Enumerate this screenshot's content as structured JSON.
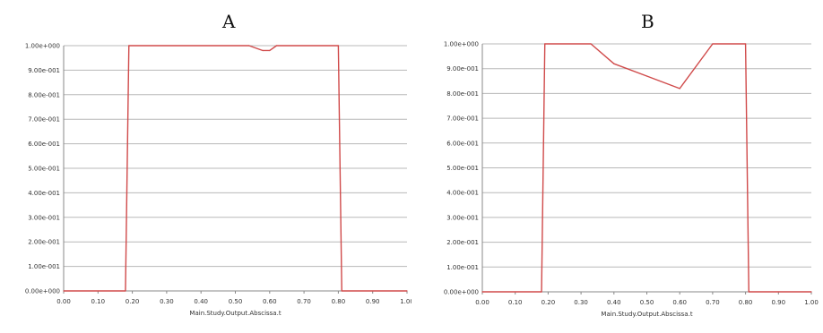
{
  "chart_data": [
    {
      "type": "line",
      "panel_label": "A",
      "xlabel": "Main.Study.Output.Abscissa.t",
      "ylabel": "",
      "xlim": [
        0.0,
        1.0
      ],
      "ylim": [
        0.0,
        1.0
      ],
      "x_ticks": [
        "0.00",
        "0.10",
        "0.20",
        "0.30",
        "0.40",
        "0.50",
        "0.60",
        "0.70",
        "0.80",
        "0.90",
        "1.00"
      ],
      "y_ticks": [
        "0.00e+000",
        "1.00e-001",
        "2.00e-001",
        "3.00e-001",
        "4.00e-001",
        "5.00e-001",
        "6.00e-001",
        "7.00e-001",
        "8.00e-001",
        "9.00e-001",
        "1.00e+000"
      ],
      "grid": true,
      "series": [
        {
          "color": "#d04a4a",
          "x": [
            0.0,
            0.18,
            0.19,
            0.54,
            0.58,
            0.6,
            0.62,
            0.8,
            0.81,
            1.0
          ],
          "y": [
            0.0,
            0.0,
            1.0,
            1.0,
            0.98,
            0.98,
            1.0,
            1.0,
            0.0,
            0.0
          ]
        }
      ]
    },
    {
      "type": "line",
      "panel_label": "B",
      "xlabel": "Main.Study.Output.Abscissa.t",
      "ylabel": "",
      "xlim": [
        0.0,
        1.0
      ],
      "ylim": [
        0.0,
        1.0
      ],
      "x_ticks": [
        "0.00",
        "0.10",
        "0.20",
        "0.30",
        "0.40",
        "0.50",
        "0.60",
        "0.70",
        "0.80",
        "0.90",
        "1.00"
      ],
      "y_ticks": [
        "0.00e+000",
        "1.00e-001",
        "2.00e-001",
        "3.00e-001",
        "4.00e-001",
        "5.00e-001",
        "6.00e-001",
        "7.00e-001",
        "8.00e-001",
        "9.00e-001",
        "1.00e+000"
      ],
      "grid": true,
      "series": [
        {
          "color": "#d04a4a",
          "x": [
            0.0,
            0.18,
            0.19,
            0.33,
            0.4,
            0.5,
            0.6,
            0.7,
            0.8,
            0.81,
            1.0
          ],
          "y": [
            0.0,
            0.0,
            1.0,
            1.0,
            0.92,
            0.87,
            0.82,
            1.0,
            1.0,
            0.0,
            0.0
          ]
        }
      ]
    }
  ]
}
